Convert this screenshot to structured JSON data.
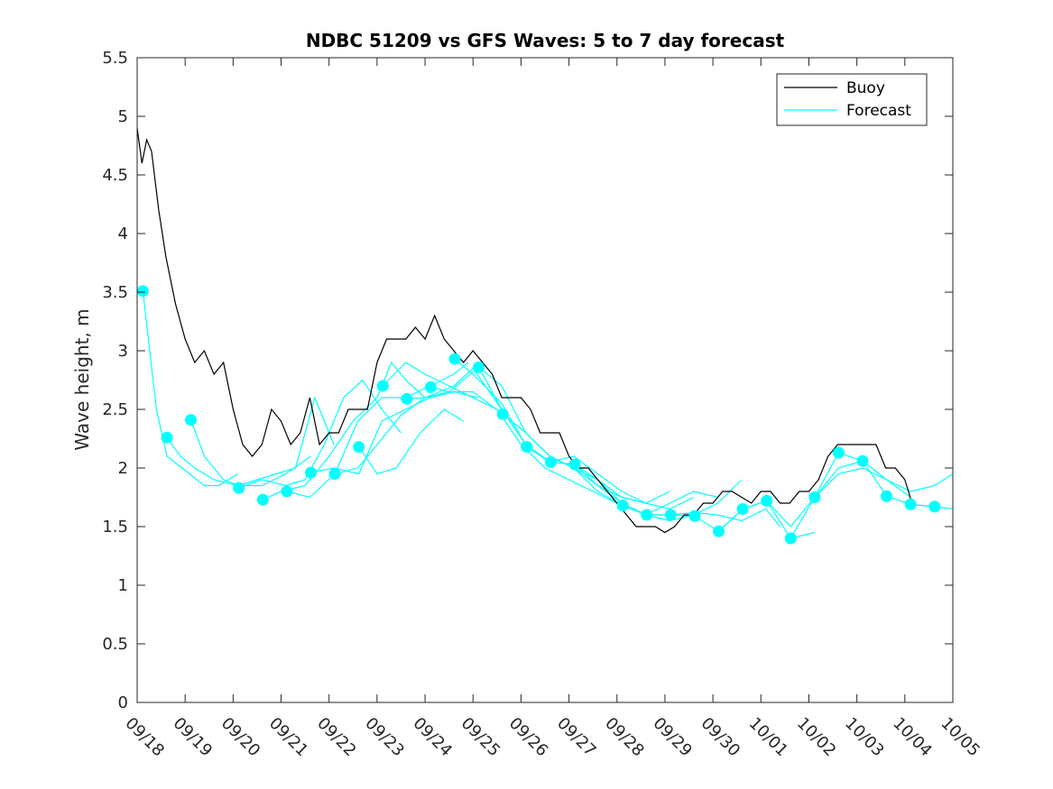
{
  "chart_data": {
    "type": "line",
    "title": "NDBC 51209 vs GFS Waves: 5 to 7 day forecast",
    "xlabel": "",
    "ylabel": "Wave height, m",
    "xlim": [
      0,
      17
    ],
    "ylim": [
      0,
      5.5
    ],
    "y_ticks": [
      0,
      0.5,
      1,
      1.5,
      2,
      2.5,
      3,
      3.5,
      4,
      4.5,
      5,
      5.5
    ],
    "y_tick_labels": [
      "0",
      "0.5",
      "1",
      "1.5",
      "2",
      "2.5",
      "3",
      "3.5",
      "4",
      "4.5",
      "5",
      "5.5"
    ],
    "x_ticks": [
      0,
      1,
      2,
      3,
      4,
      5,
      6,
      7,
      8,
      9,
      10,
      11,
      12,
      13,
      14,
      15,
      16,
      17
    ],
    "x_tick_labels": [
      "09/18",
      "09/19",
      "09/20",
      "09/21",
      "09/22",
      "09/23",
      "09/24",
      "09/25",
      "09/26",
      "09/27",
      "09/28",
      "09/29",
      "09/30",
      "10/01",
      "10/02",
      "10/03",
      "10/04",
      "10/05"
    ],
    "x_unit": "days since 09/18",
    "legend": {
      "placement": "top-right",
      "entries": [
        {
          "name": "Buoy",
          "color": "#000000"
        },
        {
          "name": "Forecast",
          "color": "#00ffff"
        }
      ]
    },
    "buoy_series": {
      "name": "Buoy",
      "color": "#000000",
      "x": [
        0,
        0.1,
        0.2,
        0.3,
        0.45,
        0.6,
        0.8,
        1.0,
        1.2,
        1.4,
        1.6,
        1.8,
        2.0,
        2.2,
        2.4,
        2.6,
        2.8,
        3.0,
        3.2,
        3.4,
        3.6,
        3.8,
        4.0,
        4.2,
        4.4,
        4.6,
        4.8,
        5.0,
        5.2,
        5.4,
        5.6,
        5.8,
        6.0,
        6.2,
        6.4,
        6.6,
        6.8,
        7.0,
        7.2,
        7.4,
        7.6,
        7.8,
        8.0,
        8.2,
        8.4,
        8.6,
        8.8,
        9.0,
        9.2,
        9.4,
        9.6,
        9.8,
        10.0,
        10.2,
        10.4,
        10.6,
        10.8,
        11.0,
        11.2,
        11.4,
        11.6,
        11.8,
        12.0,
        12.2,
        12.4,
        12.6,
        12.8,
        13.0,
        13.2,
        13.4,
        13.6,
        13.8,
        14.0,
        14.2,
        14.4,
        14.6,
        14.8,
        15.0,
        15.2,
        15.4,
        15.6,
        15.8,
        16.0,
        16.15
      ],
      "values": [
        4.9,
        4.6,
        4.8,
        4.7,
        4.2,
        3.8,
        3.4,
        3.1,
        2.9,
        3.0,
        2.8,
        2.9,
        2.5,
        2.2,
        2.1,
        2.2,
        2.5,
        2.4,
        2.2,
        2.3,
        2.6,
        2.2,
        2.3,
        2.3,
        2.5,
        2.5,
        2.5,
        2.9,
        3.1,
        3.1,
        3.1,
        3.2,
        3.1,
        3.3,
        3.1,
        3.0,
        2.9,
        3.0,
        2.9,
        2.8,
        2.6,
        2.6,
        2.6,
        2.5,
        2.3,
        2.3,
        2.3,
        2.1,
        2.0,
        2.0,
        1.9,
        1.8,
        1.7,
        1.6,
        1.5,
        1.5,
        1.5,
        1.45,
        1.5,
        1.6,
        1.6,
        1.7,
        1.7,
        1.8,
        1.8,
        1.75,
        1.7,
        1.8,
        1.8,
        1.7,
        1.7,
        1.8,
        1.8,
        1.9,
        2.1,
        2.2,
        2.2,
        2.2,
        2.2,
        2.2,
        2.0,
        2.0,
        1.9,
        1.7
      ]
    },
    "forecast_markers": {
      "name": "Forecast",
      "color": "#00ffff",
      "x": [
        0.12,
        0.62,
        1.12,
        2.12,
        2.62,
        3.12,
        3.62,
        4.12,
        4.62,
        5.12,
        5.62,
        6.12,
        6.62,
        7.12,
        7.62,
        8.12,
        8.62,
        9.12,
        10.12,
        10.62,
        11.12,
        11.62,
        12.12,
        12.62,
        13.12,
        13.62,
        14.12,
        14.62,
        15.12,
        15.62,
        16.12,
        16.62
      ],
      "values": [
        3.51,
        2.26,
        2.41,
        1.83,
        1.73,
        1.8,
        1.96,
        1.95,
        2.18,
        2.7,
        2.59,
        2.69,
        2.93,
        2.86,
        2.46,
        2.18,
        2.05,
        2.03,
        1.68,
        1.6,
        1.6,
        1.59,
        1.46,
        1.65,
        1.72,
        1.4,
        1.75,
        2.13,
        2.06,
        1.76,
        1.69,
        1.67
      ]
    },
    "forecast_series": [
      {
        "name": "Forecast",
        "x": [
          0.12,
          0.4,
          0.62,
          1.0,
          1.4,
          1.7,
          2.1
        ],
        "values": [
          3.51,
          2.5,
          2.1,
          1.98,
          1.85,
          1.85,
          1.95
        ]
      },
      {
        "name": "Forecast",
        "x": [
          0.62,
          0.9,
          1.2,
          1.6,
          2.1,
          2.6,
          3.1,
          3.62
        ],
        "values": [
          2.26,
          2.1,
          2.0,
          1.9,
          1.85,
          1.85,
          1.95,
          2.1
        ]
      },
      {
        "name": "Forecast",
        "x": [
          1.12,
          1.4,
          1.8,
          2.12,
          2.5,
          2.9,
          3.3,
          3.7,
          4.1
        ],
        "values": [
          2.41,
          2.1,
          1.9,
          1.85,
          1.9,
          1.95,
          2.0,
          2.6,
          2.2
        ]
      },
      {
        "name": "Forecast",
        "x": [
          2.12,
          2.6,
          3.1,
          3.5,
          3.9,
          4.3,
          4.7,
          5.1,
          5.5
        ],
        "values": [
          1.83,
          1.9,
          1.85,
          1.9,
          2.2,
          2.6,
          2.75,
          2.5,
          2.3
        ]
      },
      {
        "name": "Forecast",
        "x": [
          2.62,
          3.0,
          3.5,
          4.0,
          4.5,
          5.0,
          5.3,
          5.6,
          6.0
        ],
        "values": [
          1.73,
          1.8,
          1.85,
          2.1,
          2.4,
          2.6,
          2.9,
          2.75,
          2.6
        ]
      },
      {
        "name": "Forecast",
        "x": [
          3.12,
          3.6,
          4.12,
          4.6,
          5.1,
          5.6,
          6.1,
          6.6,
          6.9
        ],
        "values": [
          1.8,
          1.75,
          1.95,
          2.4,
          2.6,
          2.6,
          2.7,
          2.8,
          2.9
        ]
      },
      {
        "name": "Forecast",
        "x": [
          3.62,
          4.1,
          4.62,
          5.1,
          5.6,
          6.1,
          6.6,
          7.1
        ],
        "values": [
          1.96,
          2.0,
          1.95,
          2.4,
          2.5,
          2.6,
          2.65,
          2.6
        ]
      },
      {
        "name": "Forecast",
        "x": [
          4.12,
          4.6,
          5.0,
          5.5,
          6.0,
          6.6,
          7.0,
          7.6,
          8.1
        ],
        "values": [
          1.95,
          2.0,
          2.2,
          2.45,
          2.6,
          2.7,
          2.85,
          2.5,
          2.2
        ]
      },
      {
        "name": "Forecast",
        "x": [
          4.62,
          5.0,
          5.4,
          5.9,
          6.4,
          6.8
        ],
        "values": [
          2.18,
          1.95,
          2.0,
          2.3,
          2.5,
          2.4
        ]
      },
      {
        "name": "Forecast",
        "x": [
          5.12,
          5.6,
          6.0,
          6.5,
          7.0,
          7.5,
          8.0,
          8.5,
          9.0,
          9.5,
          10.0
        ],
        "values": [
          2.7,
          2.9,
          2.8,
          2.7,
          2.6,
          2.5,
          2.2,
          2.0,
          1.9,
          1.8,
          1.7
        ]
      },
      {
        "name": "Forecast",
        "x": [
          5.62,
          6.0,
          6.5,
          7.12,
          7.6,
          8.1,
          8.6,
          9.1,
          9.6,
          10.1,
          10.6
        ],
        "values": [
          2.59,
          2.6,
          2.65,
          2.86,
          2.7,
          2.3,
          2.1,
          2.0,
          1.85,
          1.75,
          1.7
        ]
      },
      {
        "name": "Forecast",
        "x": [
          6.12,
          6.5,
          7.0,
          7.62,
          8.1,
          8.6,
          9.1,
          9.6,
          10.1,
          10.6,
          11.1
        ],
        "values": [
          2.69,
          2.65,
          2.65,
          2.46,
          2.3,
          2.1,
          2.0,
          1.9,
          1.75,
          1.7,
          1.8
        ]
      },
      {
        "name": "Forecast",
        "x": [
          6.62,
          7.0,
          7.6,
          8.12,
          8.6,
          9.1,
          9.6,
          10.1,
          10.6,
          11.1,
          11.6
        ],
        "values": [
          2.93,
          2.8,
          2.55,
          2.18,
          2.05,
          2.1,
          1.95,
          1.8,
          1.7,
          1.65,
          1.75
        ]
      },
      {
        "name": "Forecast",
        "x": [
          7.12,
          7.6,
          8.1,
          8.62,
          9.12,
          9.6,
          10.1,
          10.6,
          11.1,
          11.6,
          12.1
        ],
        "values": [
          2.86,
          2.5,
          2.2,
          2.05,
          2.03,
          1.85,
          1.7,
          1.6,
          1.7,
          1.8,
          1.75
        ]
      },
      {
        "name": "Forecast",
        "x": [
          7.62,
          8.1,
          8.6,
          9.1,
          9.6,
          10.12,
          10.6,
          11.1,
          11.6,
          12.1,
          12.6
        ],
        "values": [
          2.46,
          2.3,
          2.1,
          2.0,
          1.8,
          1.68,
          1.6,
          1.55,
          1.6,
          1.7,
          1.9
        ]
      },
      {
        "name": "Forecast",
        "x": [
          9.12,
          9.6,
          10.1,
          10.62,
          11.12,
          11.6,
          12.1,
          12.6,
          13.1,
          13.4
        ],
        "values": [
          2.03,
          1.9,
          1.7,
          1.6,
          1.6,
          1.62,
          1.6,
          1.55,
          1.65,
          1.5
        ]
      },
      {
        "name": "Forecast",
        "x": [
          10.12,
          10.62,
          11.12,
          11.62,
          12.12,
          12.62,
          13.12,
          13.62,
          14.12
        ],
        "values": [
          1.68,
          1.6,
          1.6,
          1.59,
          1.46,
          1.65,
          1.72,
          1.4,
          1.45
        ]
      },
      {
        "name": "Forecast",
        "x": [
          12.12,
          12.62,
          13.12,
          13.62,
          14.12,
          14.62,
          15.12,
          15.62,
          16.12
        ],
        "values": [
          1.46,
          1.65,
          1.72,
          1.5,
          1.75,
          2.0,
          2.06,
          1.9,
          1.75
        ]
      },
      {
        "name": "Forecast",
        "x": [
          13.62,
          14.12,
          14.62,
          15.12,
          15.62,
          16.12,
          16.62,
          17.0
        ],
        "values": [
          1.4,
          1.75,
          2.13,
          2.06,
          1.76,
          1.69,
          1.67,
          1.65
        ]
      },
      {
        "name": "Forecast",
        "x": [
          14.12,
          14.62,
          15.12,
          15.62,
          16.12,
          16.62,
          17.0
        ],
        "values": [
          1.75,
          1.95,
          2.0,
          1.9,
          1.8,
          1.85,
          1.95
        ]
      }
    ]
  }
}
